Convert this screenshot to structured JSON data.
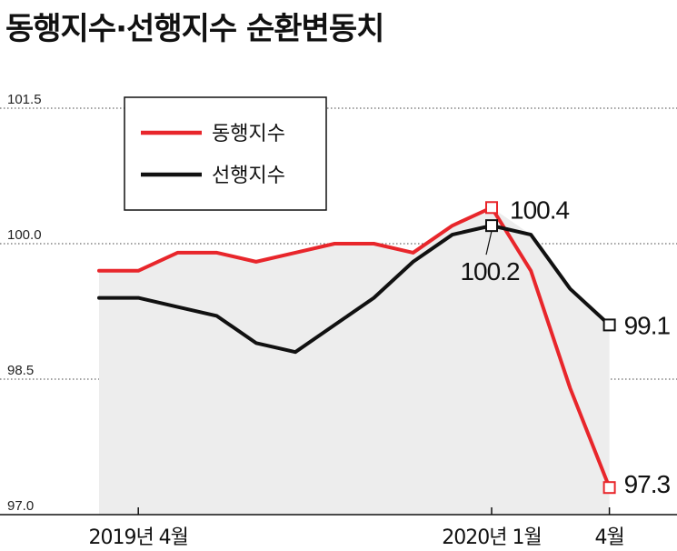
{
  "chart_data": {
    "type": "line",
    "title": "동행지수·선행지수 순환변동치",
    "x": [
      "2019-03",
      "2019-04",
      "2019-05",
      "2019-06",
      "2019-07",
      "2019-08",
      "2019-09",
      "2019-10",
      "2019-11",
      "2019-12",
      "2020-01",
      "2020-02",
      "2020-03",
      "2020-04",
      "2020-05"
    ],
    "x_tick_labels": [
      "2019년 4월",
      "2020년 1월",
      "4월"
    ],
    "y_tick_labels": [
      "101.5",
      "100.0",
      "98.5",
      "97.0"
    ],
    "ylim": [
      97.0,
      101.5
    ],
    "grid": "horizontal dotted",
    "legend": "top-left",
    "series": [
      {
        "name": "동행지수",
        "color": "#e8262b",
        "values": [
          99.7,
          99.7,
          99.9,
          99.9,
          99.8,
          99.9,
          100.0,
          100.0,
          99.9,
          100.2,
          100.4,
          99.7,
          98.4,
          97.3,
          null
        ]
      },
      {
        "name": "선행지수",
        "color": "#111111",
        "values": [
          99.4,
          99.4,
          99.3,
          99.2,
          98.9,
          98.8,
          99.1,
          99.4,
          99.8,
          100.1,
          100.2,
          100.1,
          99.5,
          99.1,
          null
        ]
      }
    ],
    "annotations": [
      {
        "series": "동행지수",
        "x": "2020-01",
        "label": "100.4"
      },
      {
        "series": "선행지수",
        "x": "2020-01",
        "label": "100.2"
      },
      {
        "series": "선행지수",
        "x": "2020-04",
        "label": "99.1"
      },
      {
        "series": "동행지수",
        "x": "2020-04",
        "label": "97.3"
      }
    ]
  }
}
